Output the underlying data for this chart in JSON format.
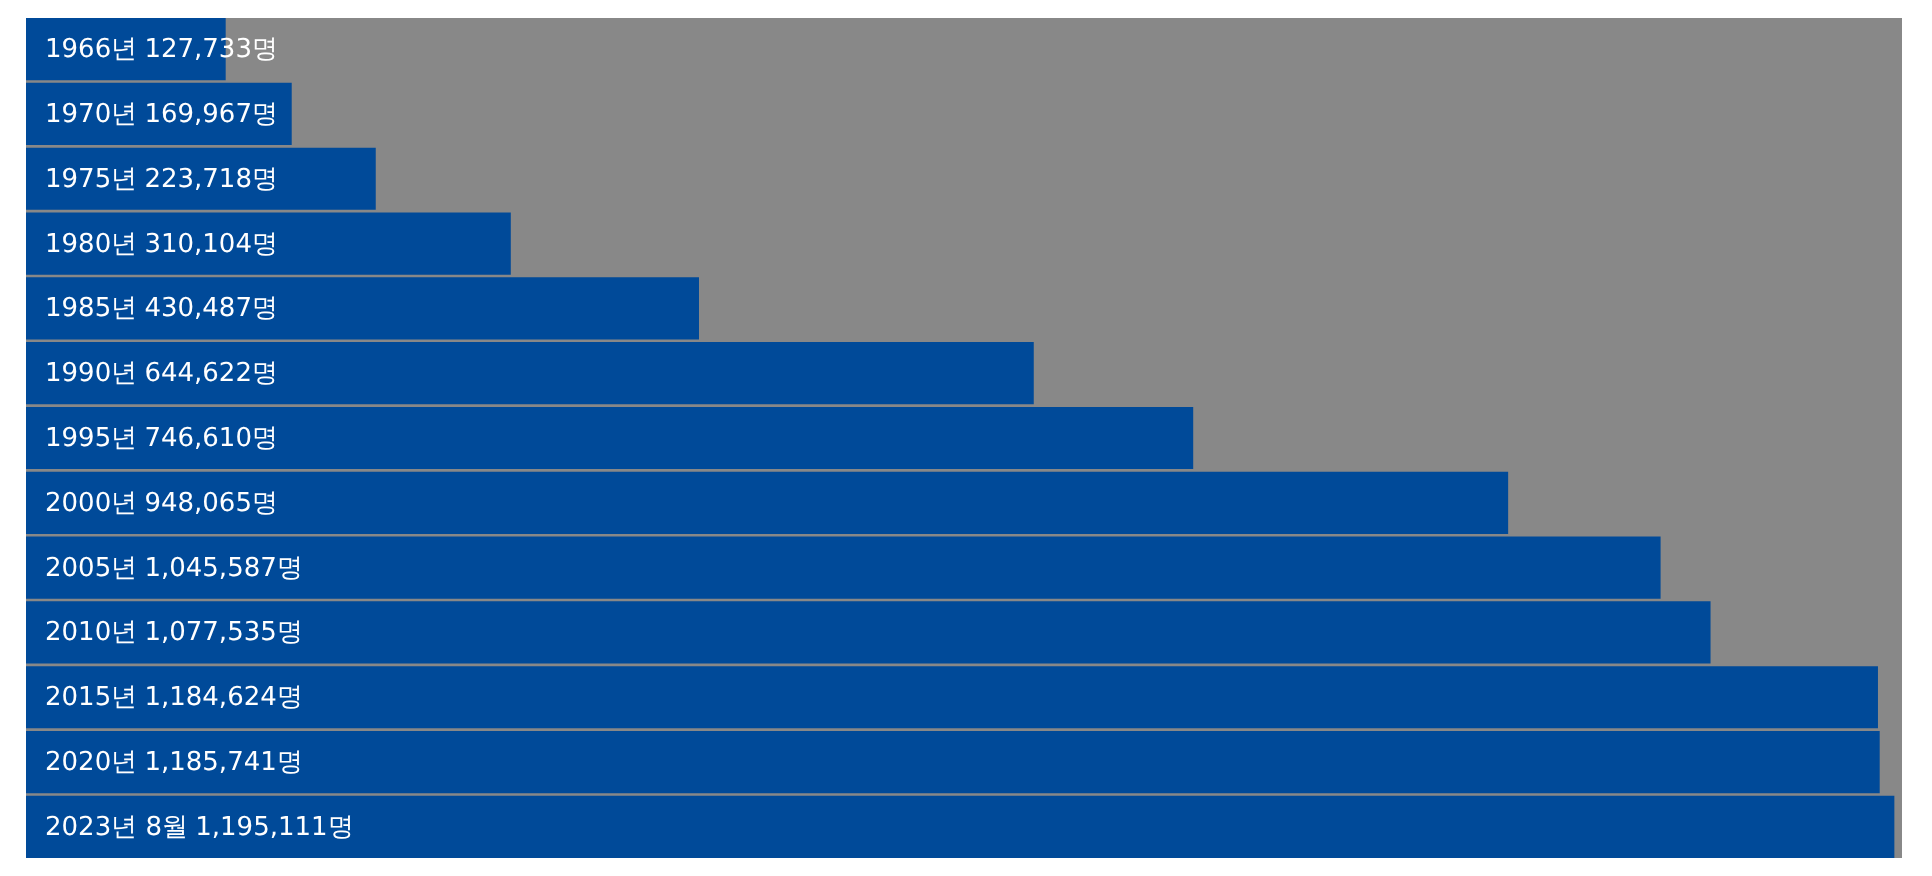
{
  "chart_data": {
    "type": "bar",
    "orientation": "horizontal",
    "categories": [
      "1966년",
      "1970년",
      "1975년",
      "1980년",
      "1985년",
      "1990년",
      "1995년",
      "2000년",
      "2005년",
      "2010년",
      "2015년",
      "2020년",
      "2023년 8월"
    ],
    "values": [
      127733,
      169967,
      223718,
      310104,
      430487,
      644622,
      746610,
      948065,
      1045587,
      1077535,
      1184624,
      1185741,
      1195111
    ],
    "value_labels": [
      "127,733명",
      "169,967명",
      "223,718명",
      "310,104명",
      "430,487명",
      "644,622명",
      "746,610명",
      "948,065명",
      "1,045,587명",
      "1,077,535명",
      "1,184,624명",
      "1,185,741명",
      "1,195,111명"
    ],
    "color": "#004a99",
    "xlim": [
      0,
      1200000
    ],
    "tick_labels": "y"
  }
}
